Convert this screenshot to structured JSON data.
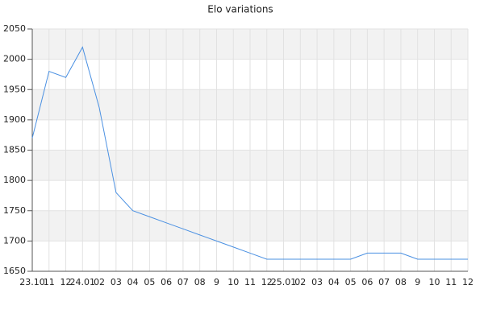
{
  "chart_data": {
    "type": "line",
    "title": "Elo variations",
    "categories": [
      "23.10",
      "11",
      "12",
      "24.01",
      "02",
      "03",
      "04",
      "05",
      "06",
      "07",
      "08",
      "9",
      "10",
      "11",
      "12",
      "25.01",
      "02",
      "03",
      "04",
      "05",
      "06",
      "07",
      "08",
      "9",
      "10",
      "11",
      "12"
    ],
    "values": [
      1870,
      1980,
      1970,
      2020,
      1920,
      1780,
      1750,
      1740,
      1730,
      1720,
      1710,
      1700,
      1690,
      1680,
      1670,
      1670,
      1670,
      1670,
      1670,
      1670,
      1680,
      1680,
      1680,
      1670,
      1670,
      1670,
      1670
    ],
    "color": "#4a90e2",
    "ylim": [
      1650,
      2050
    ],
    "yticks": [
      1650,
      1700,
      1750,
      1800,
      1850,
      1900,
      1950,
      2000,
      2050
    ],
    "grid": true
  }
}
